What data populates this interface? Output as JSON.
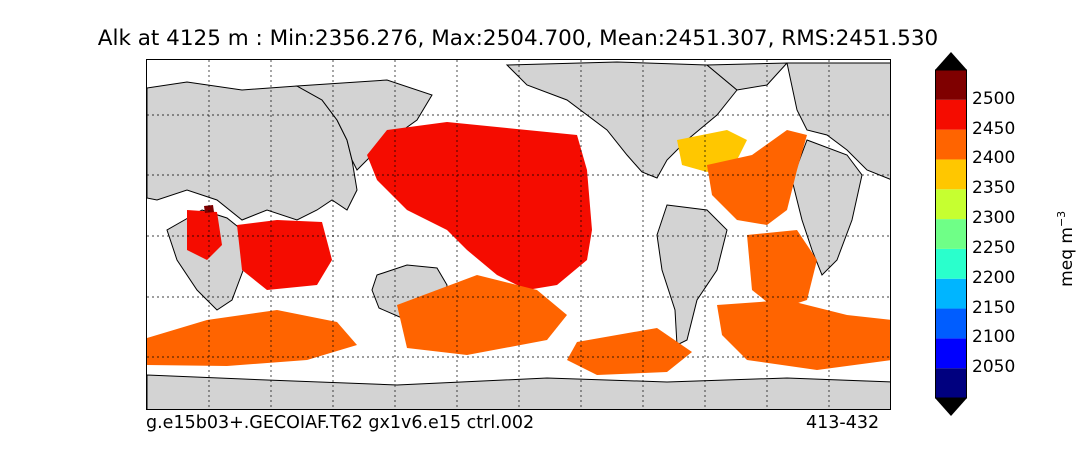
{
  "title": "Alk at 4125 m : Min:2356.276, Max:2504.700, Mean:2451.307, RMS:2451.530",
  "footer_left": "g.e15b03+.GECOIAF.T62 gx1v6.e15 ctrl.002",
  "footer_right": "413-432",
  "colorbar": {
    "unit": "meq m",
    "unit_exponent": "−3",
    "ticks": [
      "2050",
      "2100",
      "2150",
      "2200",
      "2250",
      "2300",
      "2350",
      "2400",
      "2450",
      "2500"
    ],
    "colors": [
      "#00007f",
      "#0000ff",
      "#005dff",
      "#00b5ff",
      "#2affcc",
      "#6fff87",
      "#c6ff30",
      "#ffc700",
      "#ff6400",
      "#f50c00",
      "#7f0000"
    ],
    "extend": "both"
  },
  "map": {
    "land_color": "#d3d3d3",
    "ocean_fill_colors": {
      "2350-2400": "#ffc700",
      "2400-2450": "#ff6400",
      "2450-2500": "#f50c00",
      "above-2500": "#7f0000"
    }
  }
}
